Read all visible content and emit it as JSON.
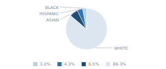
{
  "chart_data": {
    "type": "pie",
    "categories": [
      "WHITE",
      "ASIAN",
      "HISPANIC",
      "BLACK"
    ],
    "values": [
      86.3,
      6.5,
      4.3,
      3.0
    ],
    "value_labels": [
      "86.3%",
      "6.5%",
      "4.3%",
      "3.0%"
    ],
    "colors": [
      "#dce6f1",
      "#1f4e79",
      "#2e75b6",
      "#b8cfe0"
    ],
    "legend": "bottom"
  }
}
